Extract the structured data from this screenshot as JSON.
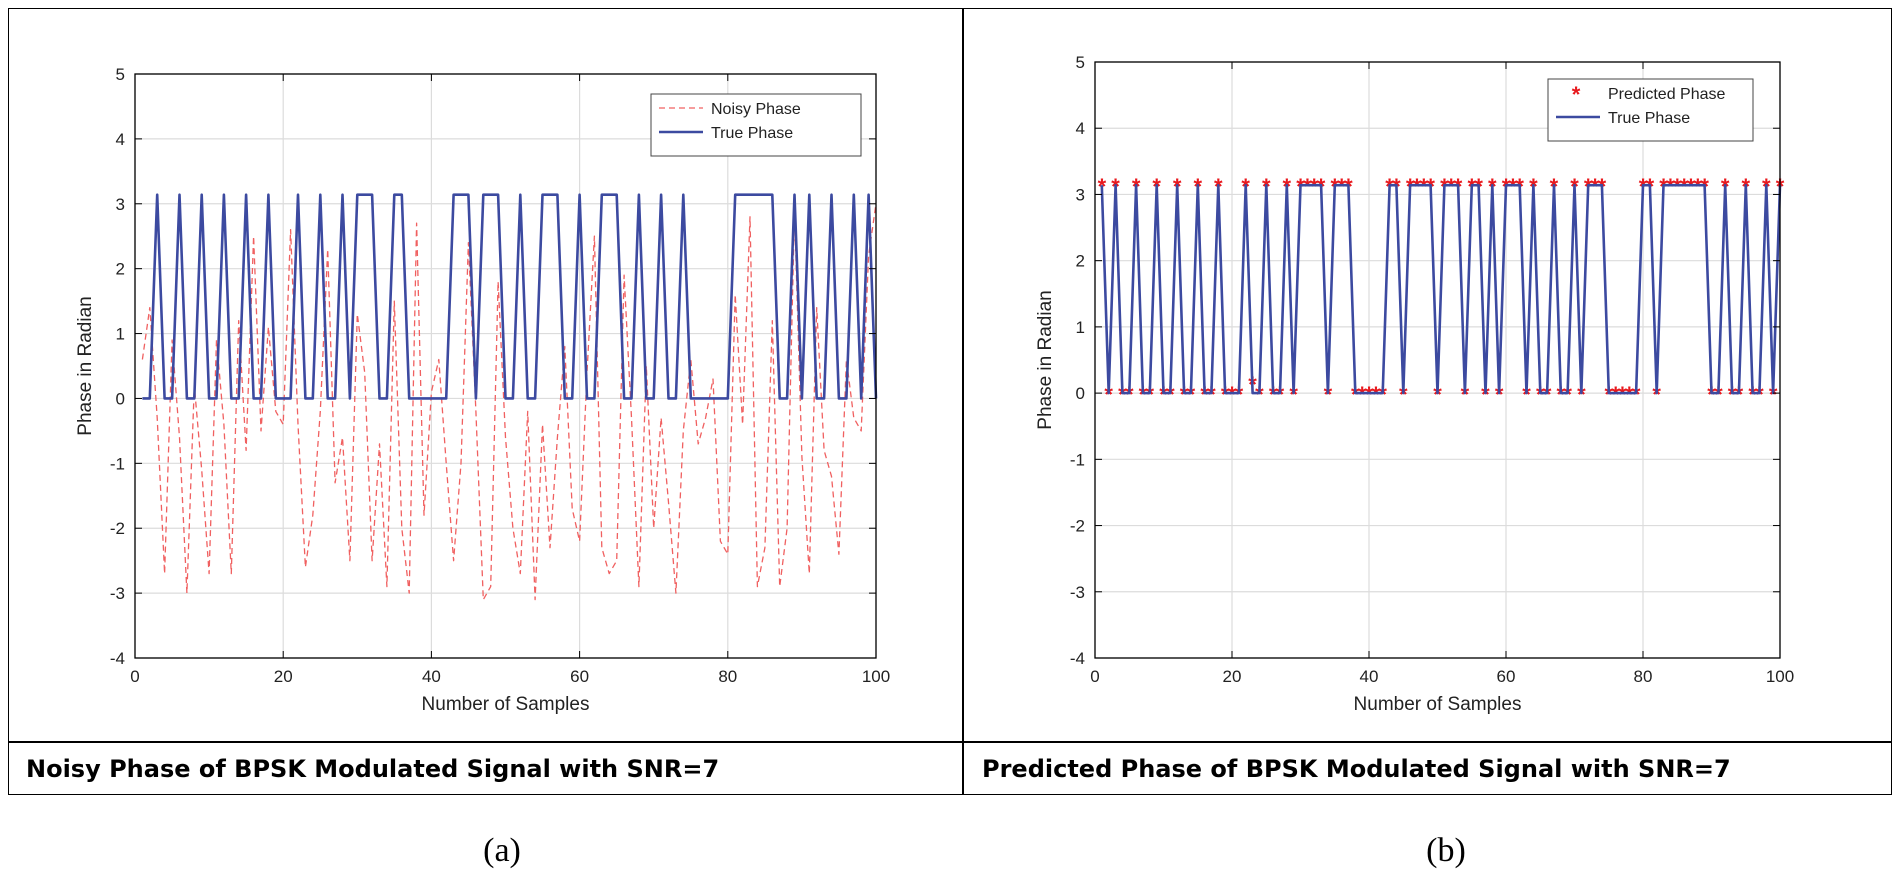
{
  "chart_data": [
    {
      "type": "line",
      "caption": "Noisy Phase of BPSK Modulated Signal with SNR=7",
      "sublabel": "(a)",
      "xlabel": "Number of Samples",
      "ylabel": "Phase in Radian",
      "xlim": [
        0,
        100
      ],
      "ylim": [
        -4,
        5
      ],
      "xticks": [
        "0",
        "20",
        "40",
        "60",
        "80",
        "100"
      ],
      "yticks": [
        "-4",
        "-3",
        "-2",
        "-1",
        "0",
        "1",
        "2",
        "3",
        "4",
        "5"
      ],
      "grid": true,
      "legend_position": "top-right",
      "series": [
        {
          "name": "Noisy Phase",
          "style": "dashed",
          "color": "#f06060",
          "x": [
            1,
            2,
            3,
            4,
            5,
            6,
            7,
            8,
            9,
            10,
            11,
            12,
            13,
            14,
            15,
            16,
            17,
            18,
            19,
            20,
            21,
            22,
            23,
            24,
            25,
            26,
            27,
            28,
            29,
            30,
            31,
            32,
            33,
            34,
            35,
            36,
            37,
            38,
            39,
            40,
            41,
            42,
            43,
            44,
            45,
            46,
            47,
            48,
            49,
            50,
            51,
            52,
            53,
            54,
            55,
            56,
            57,
            58,
            59,
            60,
            61,
            62,
            63,
            64,
            65,
            66,
            67,
            68,
            69,
            70,
            71,
            72,
            73,
            74,
            75,
            76,
            77,
            78,
            79,
            80,
            81,
            82,
            83,
            84,
            85,
            86,
            87,
            88,
            89,
            90,
            91,
            92,
            93,
            94,
            95,
            96,
            97,
            98,
            99,
            100
          ],
          "y": [
            0.6,
            1.4,
            -0.3,
            -2.7,
            0.9,
            -0.6,
            -3.0,
            0.2,
            -1.1,
            -2.7,
            0.9,
            -0.4,
            -2.7,
            1.2,
            -0.8,
            2.5,
            -0.5,
            1.1,
            -0.2,
            -0.4,
            2.6,
            -0.4,
            -2.6,
            -1.8,
            -0.2,
            2.3,
            -1.3,
            -0.6,
            -2.5,
            1.3,
            0.4,
            -2.5,
            -0.7,
            -2.9,
            1.5,
            -2.0,
            -3.0,
            2.7,
            -1.8,
            0.1,
            0.6,
            -1.0,
            -2.5,
            -1.0,
            2.4,
            -0.2,
            -3.1,
            -2.9,
            1.8,
            -0.6,
            -2.0,
            -2.7,
            -0.2,
            -3.1,
            -0.4,
            -2.3,
            -0.6,
            0.8,
            -1.7,
            -2.2,
            0.4,
            2.5,
            -2.3,
            -2.7,
            -2.5,
            1.9,
            -0.3,
            -2.9,
            0.5,
            -2.0,
            -0.3,
            -1.6,
            -3.0,
            -0.5,
            0.6,
            -0.7,
            -0.3,
            0.3,
            -2.2,
            -2.4,
            1.6,
            -0.4,
            2.8,
            -2.9,
            -2.3,
            1.2,
            -2.9,
            -2.0,
            2.9,
            -0.9,
            -2.7,
            1.4,
            -0.8,
            -1.2,
            -2.4,
            0.6,
            -0.3,
            -0.5,
            2.2,
            3.0
          ]
        },
        {
          "name": "True Phase",
          "style": "solid",
          "color": "#3c4aa0",
          "x": [
            1,
            2,
            3,
            4,
            5,
            6,
            7,
            8,
            9,
            10,
            11,
            12,
            13,
            14,
            15,
            16,
            17,
            18,
            19,
            20,
            21,
            22,
            23,
            24,
            25,
            26,
            27,
            28,
            29,
            30,
            31,
            32,
            33,
            34,
            35,
            36,
            37,
            38,
            39,
            40,
            41,
            42,
            43,
            44,
            45,
            46,
            47,
            48,
            49,
            50,
            51,
            52,
            53,
            54,
            55,
            56,
            57,
            58,
            59,
            60,
            61,
            62,
            63,
            64,
            65,
            66,
            67,
            68,
            69,
            70,
            71,
            72,
            73,
            74,
            75,
            76,
            77,
            78,
            79,
            80,
            81,
            82,
            83,
            84,
            85,
            86,
            87,
            88,
            89,
            90,
            91,
            92,
            93,
            94,
            95,
            96,
            97,
            98,
            99,
            100
          ],
          "y": [
            0,
            0,
            3.14,
            0,
            0,
            3.14,
            0,
            0,
            3.14,
            0,
            0,
            3.14,
            0,
            0,
            3.14,
            0,
            0,
            3.14,
            0,
            0,
            0,
            3.14,
            0,
            0,
            3.14,
            0,
            0,
            3.14,
            0,
            3.14,
            3.14,
            3.14,
            0,
            0,
            3.14,
            3.14,
            0,
            0,
            0,
            0,
            0,
            0,
            3.14,
            3.14,
            3.14,
            0,
            3.14,
            3.14,
            3.14,
            0,
            0,
            3.14,
            0,
            0,
            3.14,
            3.14,
            3.14,
            0,
            0,
            3.14,
            0,
            0,
            3.14,
            3.14,
            3.14,
            0,
            0,
            3.14,
            0,
            0,
            3.14,
            0,
            0,
            3.14,
            0,
            0,
            0,
            0,
            0,
            0,
            3.14,
            3.14,
            3.14,
            3.14,
            3.14,
            3.14,
            0,
            0,
            3.14,
            0,
            3.14,
            0,
            0,
            3.14,
            0,
            0,
            3.14,
            0,
            3.14,
            0
          ]
        }
      ]
    },
    {
      "type": "line",
      "caption": "Predicted Phase of BPSK Modulated Signal with SNR=7",
      "sublabel": "(b)",
      "xlabel": "Number of Samples",
      "ylabel": "Phase in Radian",
      "xlim": [
        0,
        100
      ],
      "ylim": [
        -4,
        5
      ],
      "xticks": [
        "0",
        "20",
        "40",
        "60",
        "80",
        "100"
      ],
      "yticks": [
        "-4",
        "-3",
        "-2",
        "-1",
        "0",
        "1",
        "2",
        "3",
        "4",
        "5"
      ],
      "grid": true,
      "legend_position": "top-right",
      "series": [
        {
          "name": "Predicted Phase",
          "style": "markers",
          "marker": "asterisk",
          "color": "#e8191e",
          "x": [
            1,
            2,
            3,
            4,
            5,
            6,
            7,
            8,
            9,
            10,
            11,
            12,
            13,
            14,
            15,
            16,
            17,
            18,
            19,
            20,
            21,
            22,
            23,
            24,
            25,
            26,
            27,
            28,
            29,
            30,
            31,
            32,
            33,
            34,
            35,
            36,
            37,
            38,
            39,
            40,
            41,
            42,
            43,
            44,
            45,
            46,
            47,
            48,
            49,
            50,
            51,
            52,
            53,
            54,
            55,
            56,
            57,
            58,
            59,
            60,
            61,
            62,
            63,
            64,
            65,
            66,
            67,
            68,
            69,
            70,
            71,
            72,
            73,
            74,
            75,
            76,
            77,
            78,
            79,
            80,
            81,
            82,
            83,
            84,
            85,
            86,
            87,
            88,
            89,
            90,
            91,
            92,
            93,
            94,
            95,
            96,
            97,
            98,
            99,
            100
          ],
          "y": [
            3.14,
            0,
            3.14,
            0,
            0,
            3.14,
            0,
            0,
            3.14,
            0,
            0,
            3.14,
            0,
            0,
            3.14,
            0,
            0,
            3.14,
            0,
            0,
            0,
            3.14,
            0.15,
            0,
            3.14,
            0,
            0,
            3.14,
            0,
            3.14,
            3.14,
            3.14,
            3.14,
            0,
            3.14,
            3.14,
            3.14,
            0,
            0,
            0,
            0,
            0,
            3.14,
            3.14,
            0,
            3.14,
            3.14,
            3.14,
            3.14,
            0,
            3.14,
            3.14,
            3.14,
            0,
            3.14,
            3.14,
            0,
            3.14,
            0,
            3.14,
            3.14,
            3.14,
            0,
            3.14,
            0,
            0,
            3.14,
            0,
            0,
            3.14,
            0,
            3.14,
            3.14,
            3.14,
            0,
            0,
            0,
            0,
            0,
            3.14,
            3.14,
            0,
            3.14,
            3.14,
            3.14,
            3.14,
            3.14,
            3.14,
            3.14,
            0,
            0,
            3.14,
            0,
            0,
            3.14,
            0,
            0,
            3.14,
            0,
            3.14
          ]
        },
        {
          "name": "True Phase",
          "style": "solid",
          "color": "#3c4aa0",
          "x": [
            1,
            2,
            3,
            4,
            5,
            6,
            7,
            8,
            9,
            10,
            11,
            12,
            13,
            14,
            15,
            16,
            17,
            18,
            19,
            20,
            21,
            22,
            23,
            24,
            25,
            26,
            27,
            28,
            29,
            30,
            31,
            32,
            33,
            34,
            35,
            36,
            37,
            38,
            39,
            40,
            41,
            42,
            43,
            44,
            45,
            46,
            47,
            48,
            49,
            50,
            51,
            52,
            53,
            54,
            55,
            56,
            57,
            58,
            59,
            60,
            61,
            62,
            63,
            64,
            65,
            66,
            67,
            68,
            69,
            70,
            71,
            72,
            73,
            74,
            75,
            76,
            77,
            78,
            79,
            80,
            81,
            82,
            83,
            84,
            85,
            86,
            87,
            88,
            89,
            90,
            91,
            92,
            93,
            94,
            95,
            96,
            97,
            98,
            99,
            100
          ],
          "y": [
            3.14,
            0,
            3.14,
            0,
            0,
            3.14,
            0,
            0,
            3.14,
            0,
            0,
            3.14,
            0,
            0,
            3.14,
            0,
            0,
            3.14,
            0,
            0,
            0,
            3.14,
            0,
            0,
            3.14,
            0,
            0,
            3.14,
            0,
            3.14,
            3.14,
            3.14,
            3.14,
            0,
            3.14,
            3.14,
            3.14,
            0,
            0,
            0,
            0,
            0,
            3.14,
            3.14,
            0,
            3.14,
            3.14,
            3.14,
            3.14,
            0,
            3.14,
            3.14,
            3.14,
            0,
            3.14,
            3.14,
            0,
            3.14,
            0,
            3.14,
            3.14,
            3.14,
            0,
            3.14,
            0,
            0,
            3.14,
            0,
            0,
            3.14,
            0,
            3.14,
            3.14,
            3.14,
            0,
            0,
            0,
            0,
            0,
            3.14,
            3.14,
            0,
            3.14,
            3.14,
            3.14,
            3.14,
            3.14,
            3.14,
            3.14,
            0,
            0,
            3.14,
            0,
            0,
            3.14,
            0,
            0,
            3.14,
            0,
            3.14
          ]
        }
      ]
    }
  ]
}
